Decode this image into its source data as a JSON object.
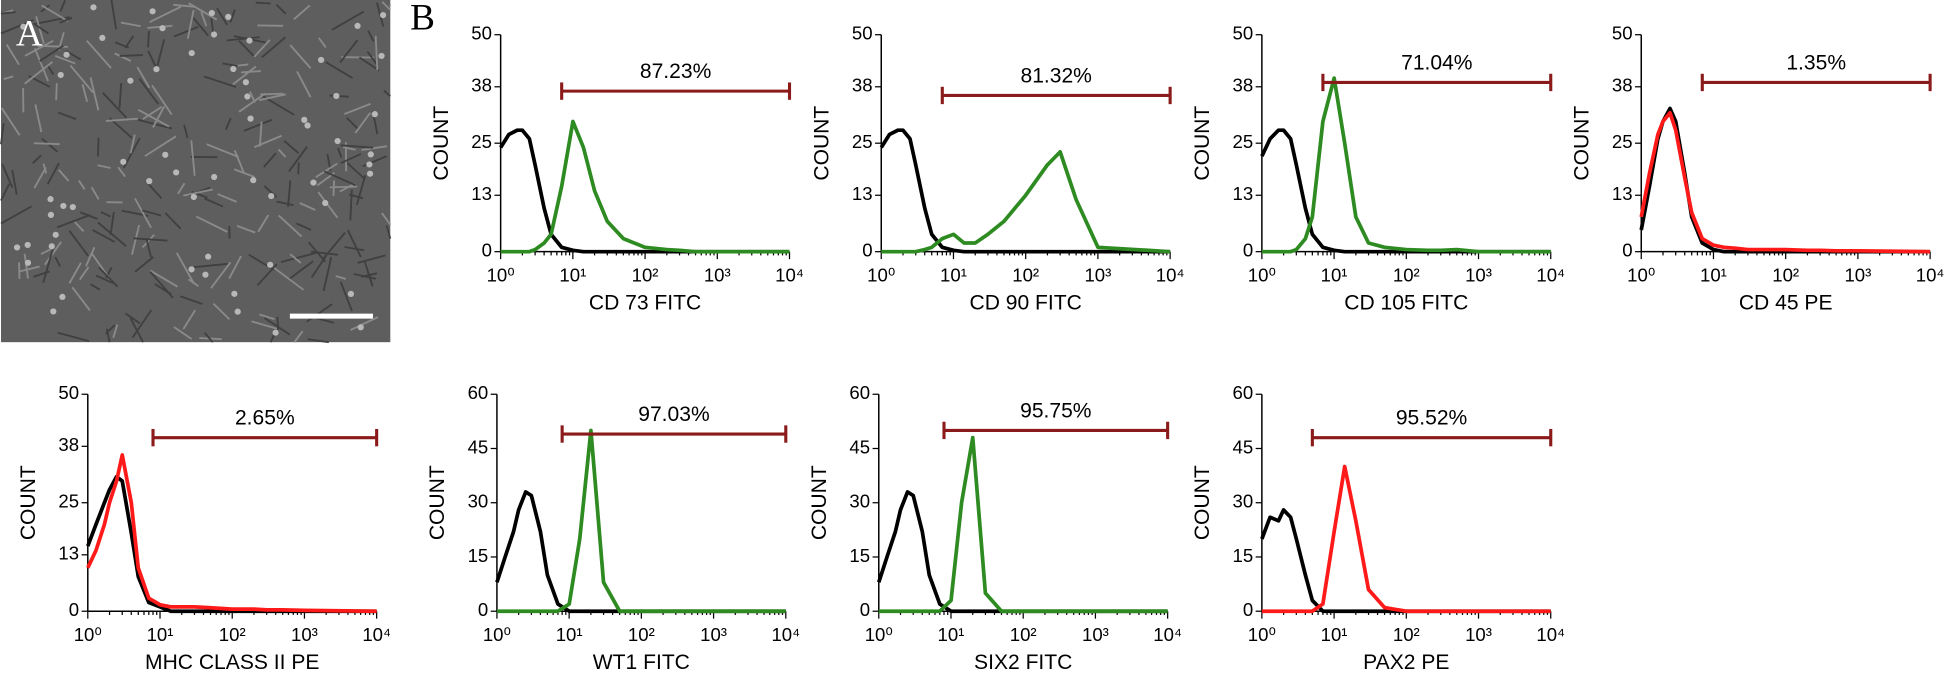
{
  "panel_labels": [
    "A",
    "B"
  ],
  "chart_data": [
    {
      "type": "line",
      "xlabel": "CD 73 FITC",
      "ylabel": "COUNT",
      "log_x": true,
      "xlim": [
        1,
        10000
      ],
      "xticks": [
        {
          "value": 1,
          "label": "10⁰"
        },
        {
          "value": 10,
          "label": "10¹"
        },
        {
          "value": 100,
          "label": "10²"
        },
        {
          "value": 1000,
          "label": "10³"
        },
        {
          "value": 10000,
          "label": "10⁴"
        }
      ],
      "ylim": [
        0,
        50
      ],
      "yticks": [
        0,
        13,
        25,
        38,
        50
      ],
      "x": [
        1,
        1.3,
        1.7,
        2,
        2.5,
        3,
        4,
        5,
        7,
        10,
        14,
        20,
        30,
        50,
        100,
        200,
        300,
        500,
        1000,
        10000
      ],
      "series": [
        {
          "color": "#000000",
          "values": [
            24,
            27,
            28,
            28,
            26,
            20,
            10,
            4,
            1,
            0.3,
            0,
            0,
            0,
            0,
            0,
            0,
            0,
            0,
            0,
            0
          ]
        },
        {
          "color": "#2e8b22",
          "values": [
            0,
            0,
            0,
            0,
            0,
            0.5,
            2,
            4,
            15,
            30,
            24,
            14,
            7,
            3,
            1,
            0.5,
            0.3,
            0,
            0,
            0
          ]
        }
      ],
      "gate_range": [
        7,
        10000
      ],
      "gate_y": 37,
      "gate_label": "87.23%"
    },
    {
      "type": "line",
      "xlabel": "CD 90 FITC",
      "ylabel": "COUNT",
      "log_x": true,
      "xlim": [
        1,
        10000
      ],
      "xticks": [
        {
          "value": 1,
          "label": "10⁰"
        },
        {
          "value": 10,
          "label": "10¹"
        },
        {
          "value": 100,
          "label": "10²"
        },
        {
          "value": 1000,
          "label": "10³"
        },
        {
          "value": 10000,
          "label": "10⁴"
        }
      ],
      "ylim": [
        0,
        50
      ],
      "yticks": [
        0,
        13,
        25,
        38,
        50
      ],
      "x": [
        1,
        1.3,
        1.7,
        2,
        2.5,
        3,
        4,
        5,
        7,
        10,
        14,
        20,
        30,
        50,
        100,
        200,
        300,
        500,
        1000,
        10000
      ],
      "series": [
        {
          "color": "#000000",
          "values": [
            24,
            27,
            28,
            28,
            26,
            20,
            10,
            4,
            1,
            0.3,
            0,
            0,
            0,
            0,
            0,
            0,
            0,
            0,
            0,
            0
          ]
        },
        {
          "color": "#2e8b22",
          "values": [
            0,
            0,
            0,
            0,
            0,
            0,
            0.5,
            1,
            3,
            4,
            2,
            2,
            4,
            7,
            13,
            20,
            23,
            12,
            1,
            0
          ]
        }
      ],
      "gate_range": [
        7,
        10000
      ],
      "gate_y": 36,
      "gate_label": "81.32%"
    },
    {
      "type": "line",
      "xlabel": "CD 105 FITC",
      "ylabel": "COUNT",
      "log_x": true,
      "xlim": [
        1,
        10000
      ],
      "xticks": [
        {
          "value": 1,
          "label": "10⁰"
        },
        {
          "value": 10,
          "label": "10¹"
        },
        {
          "value": 100,
          "label": "10²"
        },
        {
          "value": 1000,
          "label": "10³"
        },
        {
          "value": 10000,
          "label": "10⁴"
        }
      ],
      "ylim": [
        0,
        50
      ],
      "yticks": [
        0,
        13,
        25,
        38,
        50
      ],
      "x": [
        1,
        1.3,
        1.7,
        2,
        2.5,
        3,
        4,
        5,
        7,
        10,
        14,
        20,
        30,
        50,
        100,
        200,
        300,
        500,
        1000,
        10000
      ],
      "series": [
        {
          "color": "#000000",
          "values": [
            22,
            26,
            28,
            28,
            26,
            20,
            10,
            4,
            1,
            0.3,
            0,
            0,
            0,
            0,
            0,
            0,
            0,
            0,
            0,
            0
          ]
        },
        {
          "color": "#2e8b22",
          "values": [
            0,
            0,
            0,
            0,
            0,
            0.5,
            3,
            8,
            30,
            40,
            25,
            8,
            2,
            1,
            0.5,
            0.3,
            0.3,
            0.5,
            0,
            0
          ]
        }
      ],
      "gate_range": [
        7,
        10000
      ],
      "gate_y": 39,
      "gate_label": "71.04%"
    },
    {
      "type": "line",
      "xlabel": "CD 45 PE",
      "ylabel": "COUNT",
      "log_x": true,
      "xlim": [
        1,
        10000
      ],
      "xticks": [
        {
          "value": 1,
          "label": "10⁰"
        },
        {
          "value": 10,
          "label": "10¹"
        },
        {
          "value": 100,
          "label": "10²"
        },
        {
          "value": 1000,
          "label": "10³"
        },
        {
          "value": 10000,
          "label": "10⁴"
        }
      ],
      "ylim": [
        0,
        50
      ],
      "yticks": [
        0,
        13,
        25,
        38,
        50
      ],
      "x": [
        1,
        1.3,
        1.7,
        2,
        2.5,
        3,
        4,
        5,
        7,
        10,
        14,
        20,
        30,
        50,
        100,
        200,
        300,
        500,
        1000,
        10000
      ],
      "series": [
        {
          "color": "#000000",
          "values": [
            5,
            15,
            26,
            30,
            33,
            30,
            18,
            8,
            2,
            0.5,
            0,
            0,
            0,
            0,
            0,
            0,
            0,
            0,
            0,
            0
          ]
        },
        {
          "color": "#ff1a1a",
          "values": [
            8,
            18,
            27,
            30,
            32,
            28,
            17,
            9,
            3,
            1.5,
            1,
            0.8,
            0.5,
            0.5,
            0.5,
            0.3,
            0.3,
            0.2,
            0.2,
            0
          ]
        }
      ],
      "gate_range": [
        7,
        10000
      ],
      "gate_y": 39,
      "gate_label": "1.35%"
    },
    {
      "type": "line",
      "xlabel": "MHC CLASS II PE",
      "ylabel": "COUNT",
      "log_x": true,
      "xlim": [
        1,
        10000
      ],
      "xticks": [
        {
          "value": 1,
          "label": "10⁰"
        },
        {
          "value": 10,
          "label": "10¹"
        },
        {
          "value": 100,
          "label": "10²"
        },
        {
          "value": 1000,
          "label": "10³"
        },
        {
          "value": 10000,
          "label": "10⁴"
        }
      ],
      "ylim": [
        0,
        50
      ],
      "yticks": [
        0,
        13,
        25,
        38,
        50
      ],
      "x": [
        1,
        1.3,
        1.7,
        2,
        2.5,
        3,
        4,
        5,
        7,
        10,
        14,
        20,
        30,
        50,
        100,
        200,
        300,
        500,
        1000,
        10000
      ],
      "series": [
        {
          "color": "#000000",
          "values": [
            15,
            20,
            25,
            28,
            31,
            30,
            18,
            8,
            2,
            1,
            0,
            0,
            0,
            0,
            0,
            0,
            0,
            0,
            0,
            0
          ]
        },
        {
          "color": "#ff1a1a",
          "values": [
            10,
            14,
            20,
            25,
            30,
            36,
            25,
            10,
            3,
            1.5,
            1,
            1,
            1,
            0.8,
            0.5,
            0.5,
            0.3,
            0.3,
            0.2,
            0
          ]
        }
      ],
      "gate_range": [
        8,
        10000
      ],
      "gate_y": 40,
      "gate_label": "2.65%"
    },
    {
      "type": "line",
      "xlabel": "WT1 FITC",
      "ylabel": "COUNT",
      "log_x": true,
      "xlim": [
        1,
        10000
      ],
      "xticks": [
        {
          "value": 1,
          "label": "10⁰"
        },
        {
          "value": 10,
          "label": "10¹"
        },
        {
          "value": 100,
          "label": "10²"
        },
        {
          "value": 1000,
          "label": "10³"
        },
        {
          "value": 10000,
          "label": "10⁴"
        }
      ],
      "ylim": [
        0,
        60
      ],
      "yticks": [
        0,
        15,
        30,
        45,
        60
      ],
      "x": [
        1,
        1.3,
        1.7,
        2,
        2.5,
        3,
        4,
        5,
        7,
        10,
        14,
        20,
        30,
        50,
        100,
        200,
        300,
        500,
        1000,
        10000
      ],
      "series": [
        {
          "color": "#000000",
          "values": [
            8,
            15,
            22,
            28,
            33,
            32,
            22,
            10,
            2,
            0,
            0,
            0,
            0,
            0,
            0,
            0,
            0,
            0,
            0,
            0
          ]
        },
        {
          "color": "#2e8b22",
          "values": [
            0,
            0,
            0,
            0,
            0,
            0,
            0,
            0,
            0,
            2,
            20,
            50,
            8,
            0,
            0,
            0,
            0,
            0,
            0,
            0
          ]
        }
      ],
      "gate_range": [
        8,
        10000
      ],
      "gate_y": 49,
      "gate_label": "97.03%"
    },
    {
      "type": "line",
      "xlabel": "SIX2 FITC",
      "ylabel": "COUNT",
      "log_x": true,
      "xlim": [
        1,
        10000
      ],
      "xticks": [
        {
          "value": 1,
          "label": "10⁰"
        },
        {
          "value": 10,
          "label": "10¹"
        },
        {
          "value": 100,
          "label": "10²"
        },
        {
          "value": 1000,
          "label": "10³"
        },
        {
          "value": 10000,
          "label": "10⁴"
        }
      ],
      "ylim": [
        0,
        60
      ],
      "yticks": [
        0,
        15,
        30,
        45,
        60
      ],
      "x": [
        1,
        1.3,
        1.7,
        2,
        2.5,
        3,
        4,
        5,
        7,
        10,
        14,
        20,
        30,
        50,
        100,
        200,
        300,
        500,
        1000,
        10000
      ],
      "series": [
        {
          "color": "#000000",
          "values": [
            8,
            15,
            22,
            28,
            33,
            32,
            22,
            10,
            2,
            0,
            0,
            0,
            0,
            0,
            0,
            0,
            0,
            0,
            0,
            0
          ]
        },
        {
          "color": "#2e8b22",
          "values": [
            0,
            0,
            0,
            0,
            0,
            0,
            0,
            0,
            0,
            3,
            30,
            48,
            5,
            0,
            0,
            0,
            0,
            0,
            0,
            0
          ]
        }
      ],
      "gate_range": [
        8,
        10000
      ],
      "gate_y": 50,
      "gate_label": "95.75%"
    },
    {
      "type": "line",
      "xlabel": "PAX2 PE",
      "ylabel": "COUNT",
      "log_x": true,
      "xlim": [
        1,
        10000
      ],
      "xticks": [
        {
          "value": 1,
          "label": "10⁰"
        },
        {
          "value": 10,
          "label": "10¹"
        },
        {
          "value": 100,
          "label": "10²"
        },
        {
          "value": 1000,
          "label": "10³"
        },
        {
          "value": 10000,
          "label": "10⁴"
        }
      ],
      "ylim": [
        0,
        60
      ],
      "yticks": [
        0,
        15,
        30,
        45,
        60
      ],
      "x": [
        1,
        1.3,
        1.7,
        2,
        2.5,
        3,
        4,
        5,
        7,
        10,
        14,
        20,
        30,
        50,
        100,
        200,
        300,
        500,
        1000,
        10000
      ],
      "series": [
        {
          "color": "#000000",
          "values": [
            20,
            26,
            25,
            28,
            26,
            20,
            10,
            3,
            0,
            0,
            0,
            0,
            0,
            0,
            0,
            0,
            0,
            0,
            0,
            0
          ]
        },
        {
          "color": "#ff1a1a",
          "values": [
            0,
            0,
            0,
            0,
            0,
            0,
            0,
            0,
            2,
            22,
            40,
            25,
            6,
            1,
            0,
            0,
            0,
            0,
            0,
            0
          ]
        }
      ],
      "gate_range": [
        5,
        10000
      ],
      "gate_y": 48,
      "gate_label": "95.52%"
    }
  ]
}
